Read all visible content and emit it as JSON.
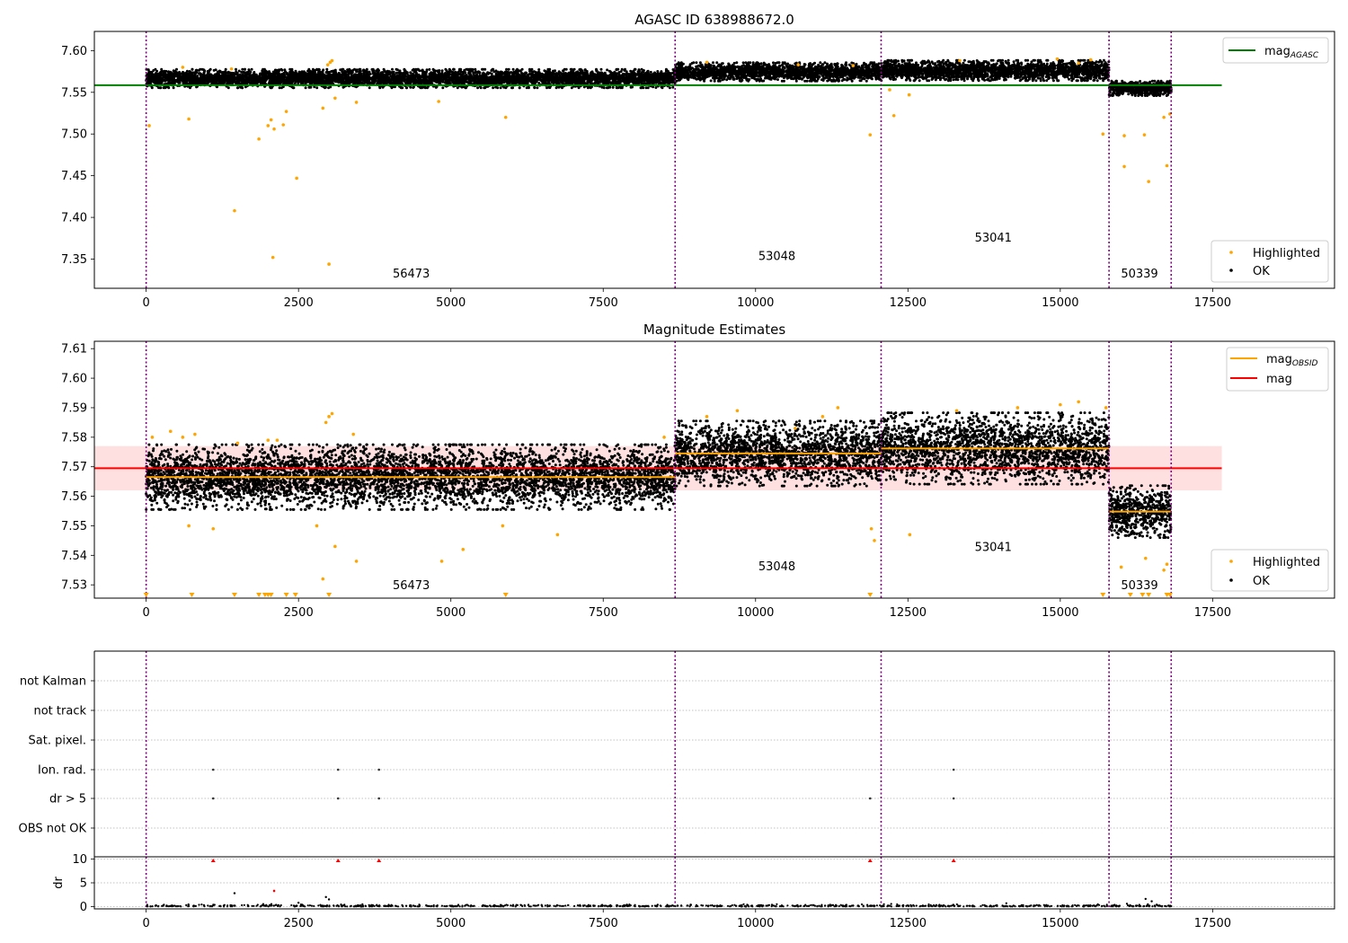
{
  "chart_data": [
    {
      "type": "scatter",
      "title": "AGASC ID 638988672.0",
      "xlabel": "",
      "ylabel": "",
      "xlim": [
        -850,
        19500
      ],
      "ylim": [
        7.315,
        7.623
      ],
      "x_ticks": [
        0,
        2500,
        5000,
        7500,
        10000,
        12500,
        15000,
        17500
      ],
      "x_tick_labels": [
        "0",
        "2500",
        "5000",
        "7500",
        "10000",
        "12500",
        "15000",
        "17500"
      ],
      "y_ticks": [
        7.35,
        7.4,
        7.45,
        7.5,
        7.55,
        7.6
      ],
      "y_tick_labels": [
        "7.35",
        "7.40",
        "7.45",
        "7.50",
        "7.55",
        "7.60"
      ],
      "grid": false,
      "obsid_boundaries": [
        0,
        8680,
        12060,
        15800,
        16820
      ],
      "obsids": [
        {
          "label": "56473",
          "x": 4350,
          "y": 7.328
        },
        {
          "label": "53048",
          "x": 10350,
          "y": 7.349
        },
        {
          "label": "53041",
          "x": 13900,
          "y": 7.371
        },
        {
          "label": "50339",
          "x": 16300,
          "y": 7.328
        }
      ],
      "segments": [
        {
          "x_start": 0,
          "x_end": 8680,
          "mean": 7.5665,
          "spread": 0.005
        },
        {
          "x_start": 8680,
          "x_end": 12060,
          "mean": 7.5745,
          "spread": 0.005
        },
        {
          "x_start": 12060,
          "x_end": 15800,
          "mean": 7.5762,
          "spread": 0.0055
        },
        {
          "x_start": 15800,
          "x_end": 16820,
          "mean": 7.5548,
          "spread": 0.004
        }
      ],
      "hlines": [
        {
          "name": "mag_AGASC",
          "y": 7.5585,
          "x_start": -850,
          "x_end": 17650,
          "color": "#008000"
        }
      ],
      "highlighted": [
        [
          50,
          7.51
        ],
        [
          700,
          7.518
        ],
        [
          1850,
          7.494
        ],
        [
          2000,
          7.51
        ],
        [
          2050,
          7.517
        ],
        [
          2100,
          7.506
        ],
        [
          2250,
          7.511
        ],
        [
          2300,
          7.527
        ],
        [
          2470,
          7.447
        ],
        [
          1450,
          7.408
        ],
        [
          2080,
          7.352
        ],
        [
          3000,
          7.344
        ],
        [
          2900,
          7.531
        ],
        [
          3100,
          7.543
        ],
        [
          3450,
          7.538
        ],
        [
          5900,
          7.52
        ],
        [
          4800,
          7.539
        ],
        [
          11880,
          7.499
        ],
        [
          12270,
          7.522
        ],
        [
          12520,
          7.547
        ],
        [
          12200,
          7.553
        ],
        [
          15700,
          7.5
        ],
        [
          16050,
          7.498
        ],
        [
          16050,
          7.461
        ],
        [
          16380,
          7.499
        ],
        [
          16450,
          7.443
        ],
        [
          16700,
          7.52
        ],
        [
          16750,
          7.462
        ],
        [
          16800,
          7.524
        ],
        [
          2980,
          7.583
        ],
        [
          3020,
          7.586
        ],
        [
          3050,
          7.588
        ],
        [
          1400,
          7.578
        ],
        [
          600,
          7.58
        ],
        [
          9200,
          7.586
        ],
        [
          10700,
          7.583
        ],
        [
          13350,
          7.588
        ],
        [
          14950,
          7.59
        ],
        [
          15300,
          7.585
        ],
        [
          15500,
          7.589
        ],
        [
          11600,
          7.582
        ]
      ],
      "legend": [
        {
          "label": "mag",
          "subscript": "AGASC",
          "kind": "line",
          "color": "#008000",
          "placement": "top-right"
        },
        {
          "label": "Highlighted",
          "kind": "marker",
          "color": "#ffa500",
          "placement": "bottom-right"
        },
        {
          "label": "OK",
          "kind": "marker",
          "color": "#000000",
          "placement": "bottom-right"
        }
      ]
    },
    {
      "type": "scatter",
      "title": "Magnitude Estimates",
      "xlabel": "",
      "ylabel": "",
      "xlim": [
        -850,
        19500
      ],
      "ylim": [
        7.5255,
        7.6125
      ],
      "x_ticks": [
        0,
        2500,
        5000,
        7500,
        10000,
        12500,
        15000,
        17500
      ],
      "x_tick_labels": [
        "0",
        "2500",
        "5000",
        "7500",
        "10000",
        "12500",
        "15000",
        "17500"
      ],
      "y_ticks": [
        7.53,
        7.54,
        7.55,
        7.56,
        7.57,
        7.58,
        7.59,
        7.6,
        7.61
      ],
      "y_tick_labels": [
        "7.53",
        "7.54",
        "7.55",
        "7.56",
        "7.57",
        "7.58",
        "7.59",
        "7.60",
        "7.61"
      ],
      "grid": false,
      "obsid_boundaries": [
        0,
        8680,
        12060,
        15800,
        16820
      ],
      "obsids": [
        {
          "label": "56473",
          "x": 4350,
          "y": 7.5285
        },
        {
          "label": "53048",
          "x": 10350,
          "y": 7.535
        },
        {
          "label": "53041",
          "x": 13900,
          "y": 7.5415
        },
        {
          "label": "50339",
          "x": 16300,
          "y": 7.5285
        }
      ],
      "segments": [
        {
          "x_start": 0,
          "x_end": 8680,
          "mean": 7.5665,
          "spread": 0.005
        },
        {
          "x_start": 8680,
          "x_end": 12060,
          "mean": 7.5745,
          "spread": 0.005
        },
        {
          "x_start": 12060,
          "x_end": 15800,
          "mean": 7.5762,
          "spread": 0.0055
        },
        {
          "x_start": 15800,
          "x_end": 16820,
          "mean": 7.5548,
          "spread": 0.004
        }
      ],
      "hlines": [
        {
          "name": "mag_OBSID",
          "y": 7.5665,
          "x_start": 0,
          "x_end": 8680,
          "color": "#ffa500"
        },
        {
          "name": "mag_OBSID",
          "y": 7.5745,
          "x_start": 8680,
          "x_end": 12060,
          "color": "#ffa500"
        },
        {
          "name": "mag_OBSID",
          "y": 7.5762,
          "x_start": 12060,
          "x_end": 15800,
          "color": "#ffa500"
        },
        {
          "name": "mag_OBSID",
          "y": 7.5548,
          "x_start": 15800,
          "x_end": 16820,
          "color": "#ffa500"
        },
        {
          "name": "mag",
          "y": 7.5695,
          "x_start": -850,
          "x_end": 17650,
          "color": "#ff0000"
        }
      ],
      "band": {
        "y_low": 7.562,
        "y_high": 7.577,
        "x_start": -850,
        "x_end": 17650,
        "color": "#ff0000"
      },
      "highlighted": [
        [
          100,
          7.58
        ],
        [
          400,
          7.582
        ],
        [
          600,
          7.58
        ],
        [
          800,
          7.581
        ],
        [
          1500,
          7.578
        ],
        [
          2000,
          7.579
        ],
        [
          2150,
          7.579
        ],
        [
          2950,
          7.585
        ],
        [
          3000,
          7.587
        ],
        [
          3050,
          7.588
        ],
        [
          3400,
          7.581
        ],
        [
          3100,
          7.543
        ],
        [
          3450,
          7.538
        ],
        [
          2900,
          7.532
        ],
        [
          2800,
          7.55
        ],
        [
          1100,
          7.549
        ],
        [
          700,
          7.55
        ],
        [
          5200,
          7.542
        ],
        [
          4850,
          7.538
        ],
        [
          5850,
          7.55
        ],
        [
          6750,
          7.547
        ],
        [
          8500,
          7.58
        ],
        [
          9200,
          7.587
        ],
        [
          9700,
          7.589
        ],
        [
          10650,
          7.583
        ],
        [
          11100,
          7.587
        ],
        [
          11350,
          7.59
        ],
        [
          11900,
          7.549
        ],
        [
          11950,
          7.545
        ],
        [
          12530,
          7.547
        ],
        [
          13300,
          7.589
        ],
        [
          14300,
          7.59
        ],
        [
          15000,
          7.591
        ],
        [
          15300,
          7.592
        ],
        [
          15750,
          7.59
        ],
        [
          16000,
          7.536
        ],
        [
          16400,
          7.539
        ],
        [
          16700,
          7.535
        ],
        [
          16750,
          7.537
        ]
      ],
      "clipped_low": [
        0,
        750,
        1450,
        1850,
        1950,
        2000,
        2050,
        2300,
        2450,
        3000,
        5900,
        11880,
        15700,
        16150,
        16350,
        16450,
        16750,
        16800
      ],
      "legend": [
        {
          "label": "mag",
          "subscript": "OBSID",
          "kind": "line",
          "color": "#ffa500",
          "placement": "top-right"
        },
        {
          "label": "mag",
          "kind": "line",
          "color": "#ff0000",
          "placement": "top-right"
        },
        {
          "label": "Highlighted",
          "kind": "marker",
          "color": "#ffa500",
          "placement": "bottom-right"
        },
        {
          "label": "OK",
          "kind": "marker",
          "color": "#000000",
          "placement": "bottom-right"
        }
      ]
    },
    {
      "type": "scatter",
      "title": "",
      "xlabel": "",
      "ylabel": "",
      "xlim": [
        -850,
        19500
      ],
      "x_ticks": [
        0,
        2500,
        5000,
        7500,
        10000,
        12500,
        15000,
        17500
      ],
      "x_tick_labels": [],
      "categories": [
        "not Kalman",
        "not track",
        "Sat. pixel.",
        "Ion. rad.",
        "dr > 5",
        "OBS not OK"
      ],
      "grid": "dotted horizontal",
      "obsid_boundaries": [
        0,
        8680,
        12060,
        15800,
        16820
      ],
      "flags": [
        {
          "category": "Ion. rad.",
          "x": [
            1100,
            3150,
            3820,
            13250
          ]
        },
        {
          "category": "dr > 5",
          "x": [
            1100,
            3150,
            3820,
            11880,
            13250
          ]
        }
      ]
    },
    {
      "type": "scatter",
      "title": "",
      "xlabel": "",
      "ylabel": "dr",
      "xlim": [
        -850,
        19500
      ],
      "ylim": [
        -0.5,
        10.5
      ],
      "x_ticks": [
        0,
        2500,
        5000,
        7500,
        10000,
        12500,
        15000,
        17500
      ],
      "x_tick_labels": [
        "0",
        "2500",
        "5000",
        "7500",
        "10000",
        "12500",
        "15000",
        "17500"
      ],
      "y_ticks": [
        0,
        5,
        10
      ],
      "y_tick_labels": [
        "0",
        "5",
        "10"
      ],
      "grid": "dotted horizontal",
      "obsid_boundaries": [
        0,
        8680,
        12060,
        15800,
        16820
      ],
      "baseline": {
        "x_start": 0,
        "x_end": 16820,
        "y": 0.15
      },
      "points": [
        [
          1450,
          2.8
        ],
        [
          2950,
          2.0
        ],
        [
          3000,
          1.5
        ],
        [
          16400,
          1.6
        ],
        [
          16500,
          1.1
        ],
        [
          2500,
          0.8
        ]
      ],
      "highlighted": [
        [
          2100,
          3.3
        ]
      ],
      "clipped_high": [
        1100,
        3150,
        3820,
        11880,
        13250
      ]
    }
  ]
}
